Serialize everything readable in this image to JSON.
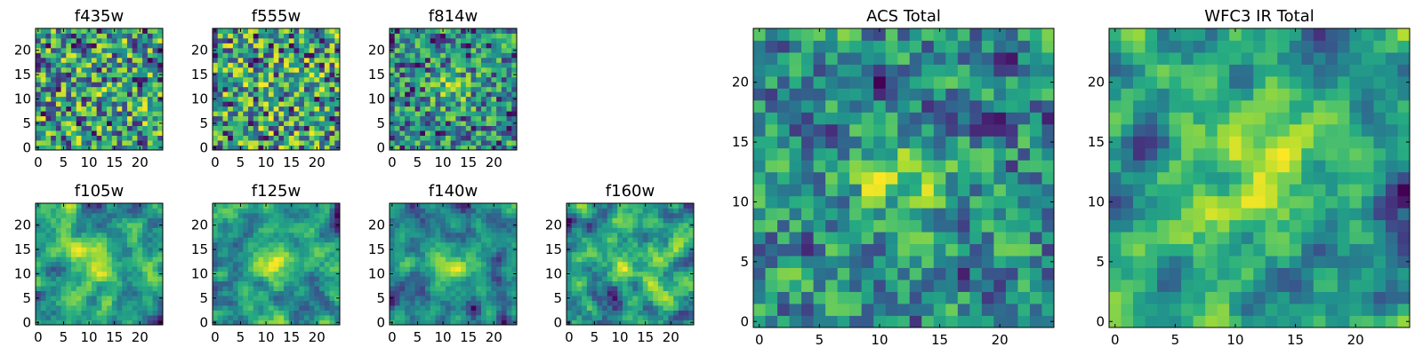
{
  "chart_data": [
    {
      "type": "heatmap",
      "title": "f435w",
      "grid_size": 25,
      "xticks": [
        0,
        5,
        10,
        15,
        20
      ],
      "yticks": [
        0,
        5,
        10,
        15,
        20
      ],
      "xlim": [
        0,
        24
      ],
      "ylim": [
        0,
        24
      ],
      "colormap": "viridis",
      "smoothness": 0.05,
      "center_peak": 0.05,
      "seed": 11
    },
    {
      "type": "heatmap",
      "title": "f555w",
      "grid_size": 25,
      "xticks": [
        0,
        5,
        10,
        15,
        20
      ],
      "yticks": [
        0,
        5,
        10,
        15,
        20
      ],
      "xlim": [
        0,
        24
      ],
      "ylim": [
        0,
        24
      ],
      "colormap": "viridis",
      "smoothness": 0.05,
      "center_peak": 0.05,
      "seed": 23
    },
    {
      "type": "heatmap",
      "title": "f814w",
      "grid_size": 25,
      "xticks": [
        0,
        5,
        10,
        15,
        20
      ],
      "yticks": [
        0,
        5,
        10,
        15,
        20
      ],
      "xlim": [
        0,
        24
      ],
      "ylim": [
        0,
        24
      ],
      "colormap": "viridis",
      "smoothness": 0.05,
      "center_peak": 0.3,
      "seed": 37
    },
    {
      "type": "heatmap",
      "title": "f105w",
      "grid_size": 25,
      "xticks": [
        0,
        5,
        10,
        15,
        20
      ],
      "yticks": [
        0,
        5,
        10,
        15,
        20
      ],
      "xlim": [
        0,
        24
      ],
      "ylim": [
        0,
        24
      ],
      "colormap": "viridis",
      "smoothness": 0.45,
      "center_peak": 0.4,
      "seed": 41
    },
    {
      "type": "heatmap",
      "title": "f125w",
      "grid_size": 25,
      "xticks": [
        0,
        5,
        10,
        15,
        20
      ],
      "yticks": [
        0,
        5,
        10,
        15,
        20
      ],
      "xlim": [
        0,
        24
      ],
      "ylim": [
        0,
        24
      ],
      "colormap": "viridis",
      "smoothness": 0.45,
      "center_peak": 0.35,
      "seed": 53
    },
    {
      "type": "heatmap",
      "title": "f140w",
      "grid_size": 25,
      "xticks": [
        0,
        5,
        10,
        15,
        20
      ],
      "yticks": [
        0,
        5,
        10,
        15,
        20
      ],
      "xlim": [
        0,
        24
      ],
      "ylim": [
        0,
        24
      ],
      "colormap": "viridis",
      "smoothness": 0.45,
      "center_peak": 0.4,
      "seed": 67
    },
    {
      "type": "heatmap",
      "title": "f160w",
      "grid_size": 25,
      "xticks": [
        0,
        5,
        10,
        15,
        20
      ],
      "yticks": [
        0,
        5,
        10,
        15,
        20
      ],
      "xlim": [
        0,
        24
      ],
      "ylim": [
        0,
        24
      ],
      "colormap": "viridis",
      "smoothness": 0.45,
      "center_peak": 0.3,
      "seed": 79
    },
    {
      "type": "heatmap",
      "title": "ACS Total",
      "grid_size": 25,
      "xticks": [
        0,
        5,
        10,
        15,
        20
      ],
      "yticks": [
        0,
        5,
        10,
        15,
        20
      ],
      "xlim": [
        0,
        24
      ],
      "ylim": [
        0,
        24
      ],
      "colormap": "viridis",
      "smoothness": 0.1,
      "center_peak": 0.35,
      "seed": 97
    },
    {
      "type": "heatmap",
      "title": "WFC3 IR Total",
      "grid_size": 25,
      "xticks": [
        0,
        5,
        10,
        15,
        20
      ],
      "yticks": [
        0,
        5,
        10,
        15,
        20
      ],
      "xlim": [
        0,
        24
      ],
      "ylim": [
        0,
        24
      ],
      "colormap": "viridis",
      "smoothness": 0.5,
      "center_peak": 0.45,
      "seed": 113
    }
  ]
}
